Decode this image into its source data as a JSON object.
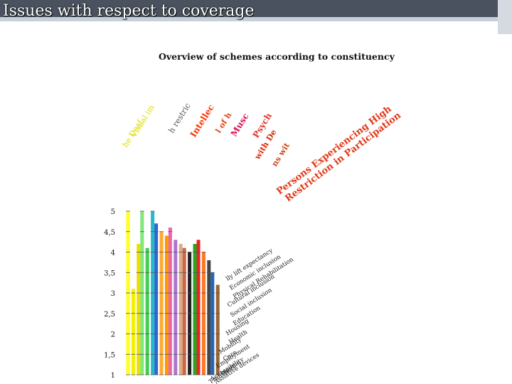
{
  "slide": {
    "title": "Issues with respect to coverage"
  },
  "chart_data": {
    "type": "line",
    "title": "Overview of schemes according to constituency",
    "xlabel": "",
    "ylabel": "",
    "ylim": [
      0.8,
      5.0
    ],
    "yticks": [
      "5",
      "4,5",
      "4",
      "3,5",
      "3",
      "2,5",
      "2",
      "1,5",
      "1"
    ],
    "ytick_values": [
      5,
      4.5,
      4,
      3.5,
      3,
      2.5,
      2,
      1.5,
      1
    ],
    "grid": false,
    "legend_position": "top",
    "legend": [
      {
        "label": "he Deaf",
        "color": "#dddd00"
      },
      {
        "label": "Visual im",
        "color": "#dddd00"
      },
      {
        "label": "h restric",
        "color": "#555555"
      },
      {
        "label": "Intellec",
        "color": "#ff3300"
      },
      {
        "label": "l of h",
        "color": "#e0491b"
      },
      {
        "label": "Musc",
        "color": "#dd1155"
      },
      {
        "label": "Psych",
        "color": "#e03a2a"
      },
      {
        "label": "with De",
        "color": "#d62a0a"
      },
      {
        "label": "ns wit",
        "color": "#c9471a"
      },
      {
        "label": "Persons Experiencing High",
        "color": "#e0391a"
      },
      {
        "label": "Restriction in Participation",
        "color": "#e0391a"
      }
    ],
    "scheme_labels": [
      "lly lift expectancy",
      "Economic inclusion",
      "Physical Rehabilitation",
      "Cultural inclusion",
      "Social inclusion",
      "Education",
      "Housing",
      "Health",
      "Mobility",
      "Care",
      "Employment",
      "Income",
      "Accessibility",
      "Assistive devices",
      "Transport"
    ],
    "series": [
      {
        "color": "#ffff22",
        "values": [
          1.0,
          5.0
        ]
      },
      {
        "color": "#f2f200",
        "values": [
          1.0,
          3.1
        ]
      },
      {
        "color": "#eedd00",
        "values": [
          1.0,
          4.2
        ]
      },
      {
        "color": "#7fe87a",
        "values": [
          1.0,
          5.0
        ]
      },
      {
        "color": "#44cc55",
        "values": [
          1.0,
          4.1
        ]
      },
      {
        "color": "#22bbcc",
        "values": [
          1.0,
          5.0
        ]
      },
      {
        "color": "#3366cc",
        "values": [
          1.0,
          4.7
        ]
      },
      {
        "color": "#ffaa33",
        "values": [
          1.0,
          4.5
        ]
      },
      {
        "color": "#ff9900",
        "values": [
          1.0,
          4.4
        ]
      },
      {
        "color": "#ee66aa",
        "values": [
          1.0,
          4.6
        ]
      },
      {
        "color": "#aa77cc",
        "values": [
          1.0,
          4.3
        ]
      },
      {
        "color": "#ddaa88",
        "values": [
          1.0,
          4.2
        ]
      },
      {
        "color": "#cc6644",
        "values": [
          1.0,
          4.1
        ]
      },
      {
        "color": "#222222",
        "values": [
          1.0,
          4.0
        ]
      },
      {
        "color": "#22aa22",
        "values": [
          1.0,
          4.2
        ]
      },
      {
        "color": "#ee2222",
        "values": [
          1.0,
          4.3
        ]
      },
      {
        "color": "#ff7722",
        "values": [
          1.0,
          4.0
        ]
      },
      {
        "color": "#444444",
        "values": [
          1.0,
          3.8
        ]
      },
      {
        "color": "#2266bb",
        "values": [
          1.0,
          3.5
        ]
      },
      {
        "color": "#996633",
        "values": [
          1.0,
          3.2
        ]
      }
    ]
  }
}
